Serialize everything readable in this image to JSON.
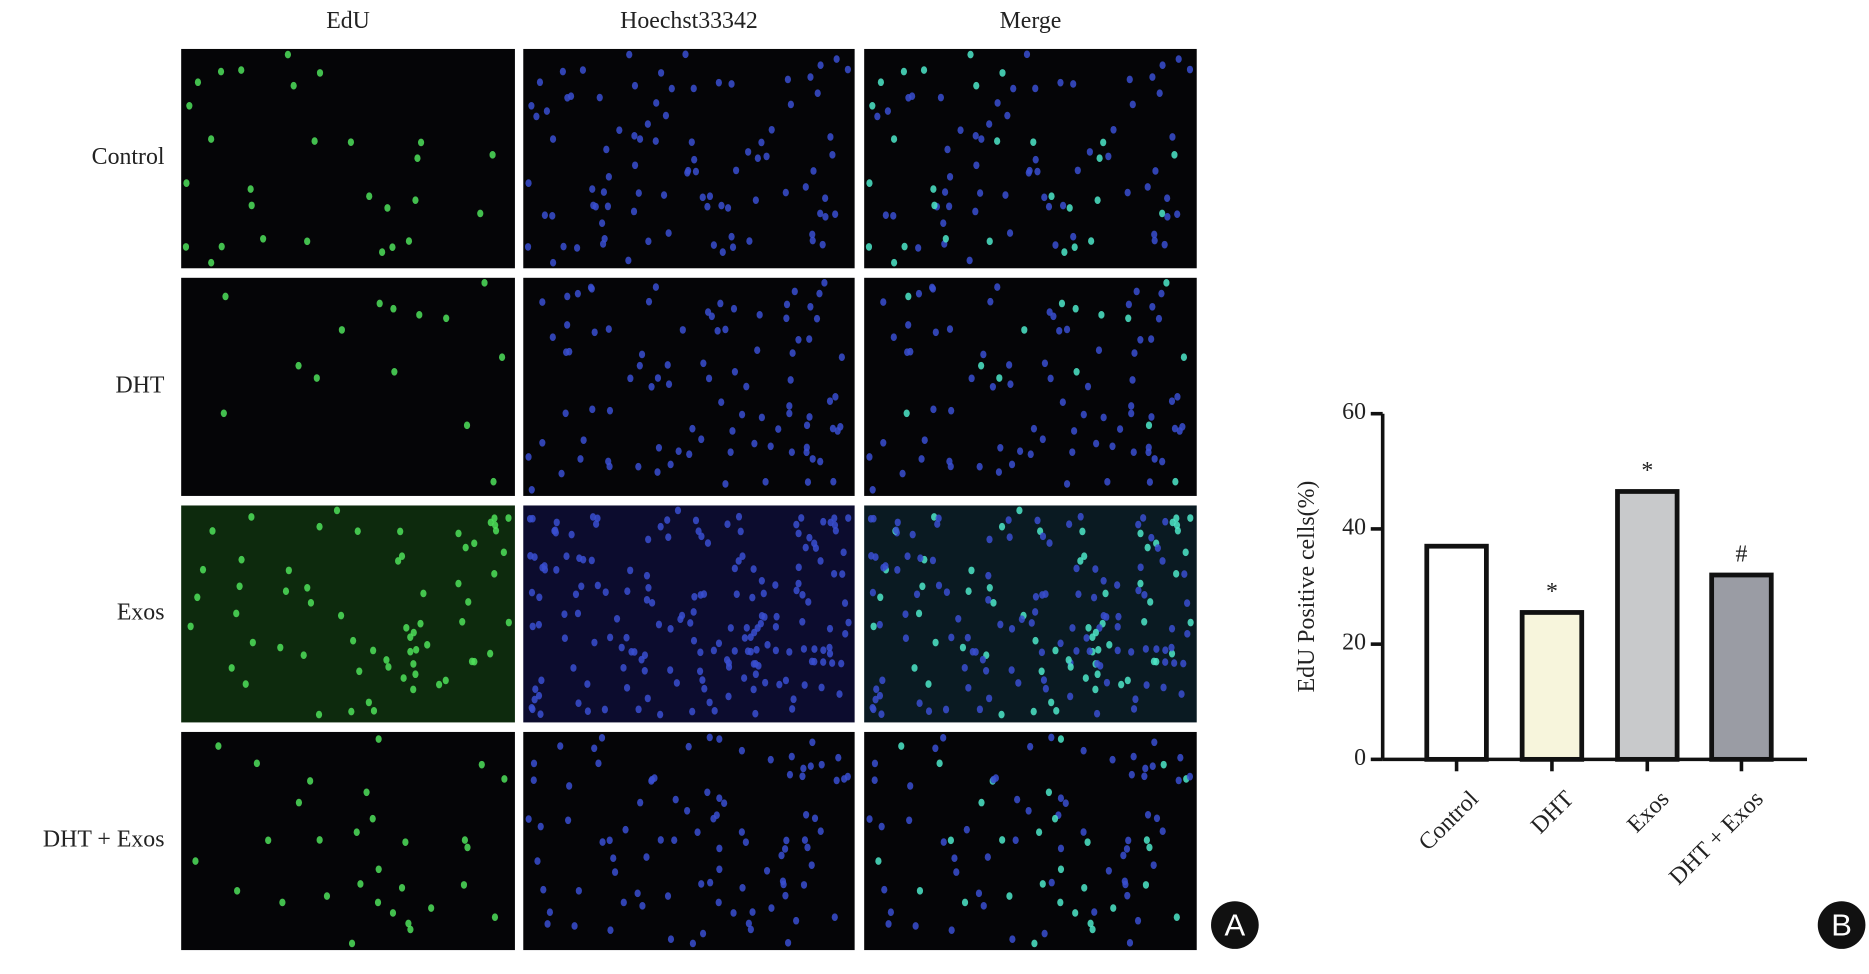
{
  "figure": {
    "panel_a": {
      "columns": [
        "EdU",
        "Hoechst33342",
        "Merge"
      ],
      "rows": [
        "Control",
        "DHT",
        "Exos",
        "DHT + Exos"
      ],
      "label": "A"
    },
    "panel_b_label": "B"
  },
  "chart_data": {
    "type": "bar",
    "ylabel": "EdU Positive cells(%)",
    "categories": [
      "Control",
      "DHT",
      "Exos",
      "DHT + Exos"
    ],
    "values": [
      37,
      25.5,
      46.5,
      32
    ],
    "annotations": [
      null,
      "*",
      "*",
      "#"
    ],
    "colors": [
      "#ffffff",
      "#f7f5dc",
      "#c8c9cb",
      "#9a9ca4"
    ],
    "ylim": [
      0,
      60
    ],
    "yticks": [
      0,
      20,
      40,
      60
    ]
  }
}
